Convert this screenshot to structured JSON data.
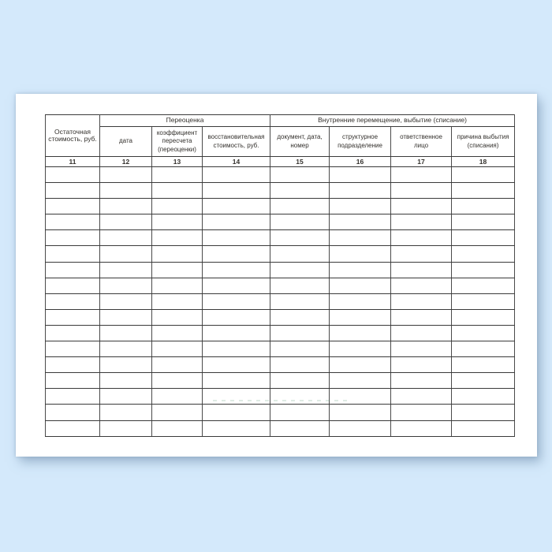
{
  "page": {
    "background_color": "#d4e9fb",
    "paper_color": "#ffffff",
    "border_color": "#3a3a3a",
    "text_color": "#33302c"
  },
  "table": {
    "corner_header": "Остаточная стоимость, руб.",
    "groups": [
      {
        "label": "Переоценка"
      },
      {
        "label": "Внутренние перемещение, выбытие (списание)"
      }
    ],
    "sub_headers": [
      "дата",
      "коэффициент пересчета (переоценки)",
      "восстановительная стоимость, руб.",
      "документ, дата, номер",
      "структурное подразделение",
      "ответственное лицо",
      "причина выбытия (списания)"
    ],
    "column_numbers": [
      "11",
      "12",
      "13",
      "14",
      "15",
      "16",
      "17",
      "18"
    ],
    "empty_rows": 17
  },
  "watermark": {
    "color": "rgba(70,140,100,0.38)"
  }
}
